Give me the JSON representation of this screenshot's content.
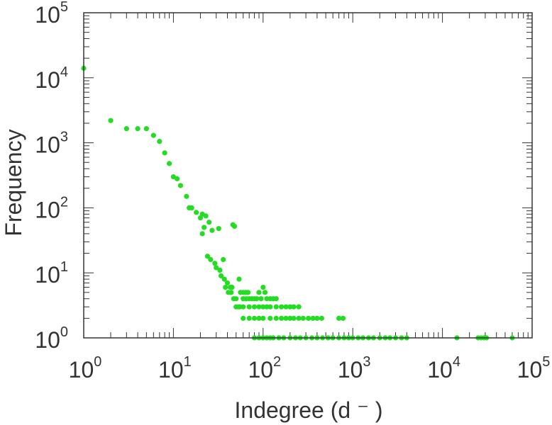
{
  "chart_data": {
    "type": "scatter",
    "title": "",
    "xlabel": "Indegree (d ⁻ )",
    "ylabel": "Frequency",
    "xscale": "log",
    "yscale": "log",
    "xlim": [
      1,
      100000
    ],
    "ylim": [
      1,
      100000
    ],
    "grid": false,
    "marker_color": "#22dd22",
    "x_ticks": [
      {
        "base": "10",
        "exp": "0"
      },
      {
        "base": "10",
        "exp": "1"
      },
      {
        "base": "10",
        "exp": "2"
      },
      {
        "base": "10",
        "exp": "3"
      },
      {
        "base": "10",
        "exp": "4"
      },
      {
        "base": "10",
        "exp": "5"
      }
    ],
    "y_ticks": [
      {
        "base": "10",
        "exp": "0"
      },
      {
        "base": "10",
        "exp": "1"
      },
      {
        "base": "10",
        "exp": "2"
      },
      {
        "base": "10",
        "exp": "3"
      },
      {
        "base": "10",
        "exp": "4"
      },
      {
        "base": "10",
        "exp": "5"
      }
    ],
    "points": [
      [
        1,
        14000
      ],
      [
        2,
        2200
      ],
      [
        3,
        1650
      ],
      [
        4,
        1650
      ],
      [
        5,
        1650
      ],
      [
        6,
        1300
      ],
      [
        7,
        1050
      ],
      [
        8,
        700
      ],
      [
        9,
        480
      ],
      [
        10,
        300
      ],
      [
        11,
        280
      ],
      [
        12,
        220
      ],
      [
        14,
        150
      ],
      [
        15,
        100
      ],
      [
        16,
        100
      ],
      [
        18,
        85
      ],
      [
        20,
        70
      ],
      [
        21,
        80
      ],
      [
        22,
        50
      ],
      [
        23,
        75
      ],
      [
        25,
        60
      ],
      [
        27,
        45
      ],
      [
        21,
        40
      ],
      [
        32,
        48
      ],
      [
        46,
        55
      ],
      [
        48,
        52
      ],
      [
        24,
        18
      ],
      [
        26,
        16
      ],
      [
        29,
        14
      ],
      [
        30,
        12
      ],
      [
        33,
        11
      ],
      [
        36,
        16
      ],
      [
        34,
        9
      ],
      [
        37,
        8
      ],
      [
        40,
        7
      ],
      [
        43,
        6
      ],
      [
        45,
        6
      ],
      [
        38,
        6
      ],
      [
        41,
        5
      ],
      [
        44,
        5
      ],
      [
        47,
        4
      ],
      [
        50,
        4
      ],
      [
        53,
        3
      ],
      [
        56,
        5
      ],
      [
        60,
        5
      ],
      [
        64,
        5
      ],
      [
        68,
        5
      ],
      [
        54,
        8
      ],
      [
        90,
        5
      ],
      [
        100,
        6
      ],
      [
        105,
        5
      ],
      [
        60,
        4
      ],
      [
        65,
        4
      ],
      [
        70,
        4
      ],
      [
        75,
        4
      ],
      [
        80,
        4
      ],
      [
        85,
        4
      ],
      [
        95,
        4
      ],
      [
        110,
        4
      ],
      [
        120,
        4
      ],
      [
        130,
        4
      ],
      [
        140,
        4
      ],
      [
        50,
        3
      ],
      [
        55,
        3
      ],
      [
        60,
        3
      ],
      [
        70,
        3
      ],
      [
        80,
        3
      ],
      [
        90,
        3
      ],
      [
        100,
        3
      ],
      [
        110,
        3
      ],
      [
        120,
        3
      ],
      [
        140,
        3
      ],
      [
        160,
        3
      ],
      [
        180,
        3
      ],
      [
        200,
        3
      ],
      [
        220,
        3
      ],
      [
        250,
        3
      ],
      [
        60,
        2
      ],
      [
        70,
        2
      ],
      [
        80,
        2
      ],
      [
        90,
        2
      ],
      [
        100,
        2
      ],
      [
        120,
        2
      ],
      [
        140,
        2
      ],
      [
        160,
        2
      ],
      [
        180,
        2
      ],
      [
        200,
        2
      ],
      [
        220,
        2
      ],
      [
        250,
        2
      ],
      [
        280,
        2
      ],
      [
        320,
        2
      ],
      [
        360,
        2
      ],
      [
        400,
        2
      ],
      [
        450,
        2
      ],
      [
        700,
        2
      ],
      [
        780,
        2
      ],
      [
        80,
        1
      ],
      [
        90,
        1
      ],
      [
        100,
        1
      ],
      [
        110,
        1
      ],
      [
        120,
        1
      ],
      [
        130,
        1
      ],
      [
        150,
        1
      ],
      [
        170,
        1
      ],
      [
        200,
        1
      ],
      [
        230,
        1
      ],
      [
        260,
        1
      ],
      [
        300,
        1
      ],
      [
        350,
        1
      ],
      [
        400,
        1
      ],
      [
        460,
        1
      ],
      [
        530,
        1
      ],
      [
        600,
        1
      ],
      [
        700,
        1
      ],
      [
        800,
        1
      ],
      [
        900,
        1
      ],
      [
        1000,
        1
      ],
      [
        1150,
        1
      ],
      [
        1300,
        1
      ],
      [
        1500,
        1
      ],
      [
        1700,
        1
      ],
      [
        2000,
        1
      ],
      [
        2300,
        1
      ],
      [
        2600,
        1
      ],
      [
        3000,
        1
      ],
      [
        3500,
        1
      ],
      [
        4000,
        1
      ],
      [
        14500,
        1
      ],
      [
        25000,
        1
      ],
      [
        27000,
        1
      ],
      [
        29000,
        1
      ],
      [
        31000,
        1
      ],
      [
        60000,
        1
      ]
    ]
  }
}
